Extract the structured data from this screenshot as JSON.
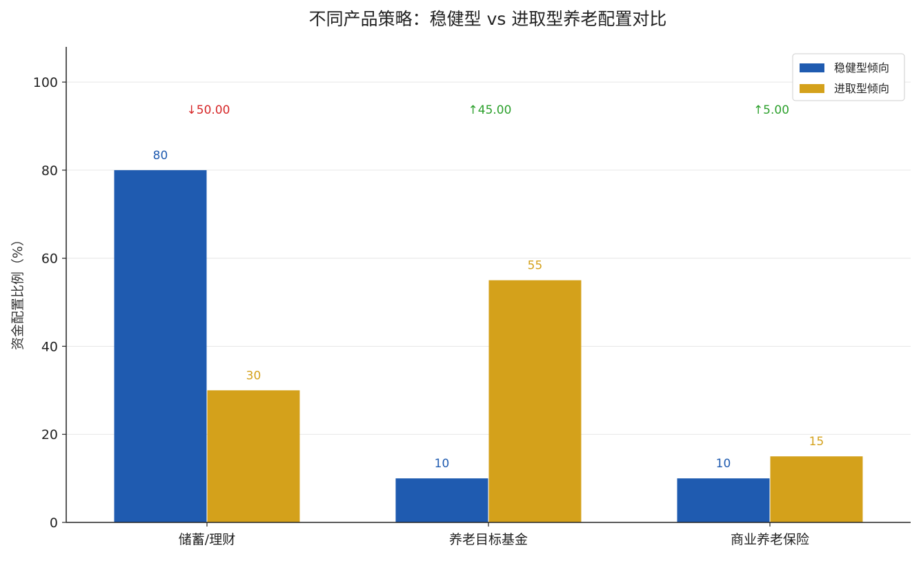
{
  "chart_data": {
    "type": "bar",
    "title": "不同产品策略：稳健型 vs 进取型养老配置对比",
    "xlabel": "",
    "ylabel": "资金配置比例（%）",
    "categories": [
      "储蓄/理财",
      "养老目标基金",
      "商业养老保险"
    ],
    "series": [
      {
        "name": "稳健型倾向",
        "values": [
          80,
          10,
          10
        ],
        "color": "#1f5bb0"
      },
      {
        "name": "进取型倾向",
        "values": [
          30,
          55,
          15
        ],
        "color": "#d4a11b"
      }
    ],
    "value_labels": [
      [
        "80",
        "10",
        "10"
      ],
      [
        "30",
        "55",
        "15"
      ]
    ],
    "difference_labels": [
      {
        "text": "↓50.00",
        "color": "#d62728"
      },
      {
        "text": "↑45.00",
        "color": "#2ca02c"
      },
      {
        "text": "↑5.00",
        "color": "#2ca02c"
      }
    ],
    "ylim": [
      0,
      108
    ],
    "yticks": [
      0,
      20,
      40,
      60,
      80,
      100
    ],
    "grid": true,
    "legend_position": "top-right"
  }
}
